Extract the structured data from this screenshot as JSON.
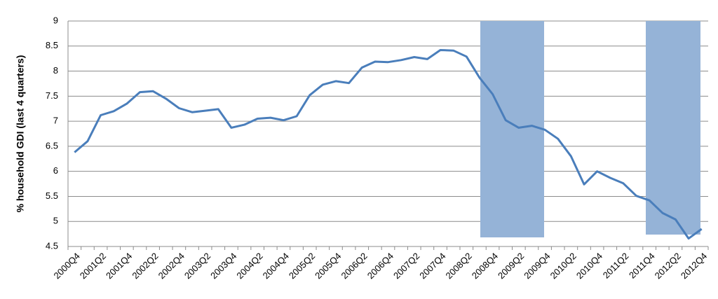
{
  "chart_data": {
    "type": "line",
    "y_label": "% household GDI (last 4 quarters)",
    "categories": [
      "2000Q4",
      null,
      "2001Q2",
      null,
      "2001Q4",
      null,
      "2002Q2",
      null,
      "2002Q4",
      null,
      "2003Q2",
      null,
      "2003Q4",
      null,
      "2004Q2",
      null,
      "2004Q4",
      null,
      "2005Q2",
      null,
      "2005Q4",
      null,
      "2006Q2",
      null,
      "2006Q4",
      null,
      "2007Q2",
      null,
      "2007Q4",
      null,
      "2008Q2",
      null,
      "2008Q4",
      null,
      "2009Q2",
      null,
      "2009Q4",
      null,
      "2010Q2",
      null,
      "2010Q4",
      null,
      "2011Q2",
      null,
      "2011Q4",
      null,
      "2012Q2",
      null,
      "2012Q4"
    ],
    "values": [
      6.38,
      6.6,
      7.12,
      7.2,
      7.35,
      7.58,
      7.6,
      7.45,
      7.26,
      7.18,
      7.21,
      7.24,
      6.87,
      6.93,
      7.05,
      7.07,
      7.02,
      7.1,
      7.52,
      7.73,
      7.8,
      7.76,
      8.07,
      8.19,
      8.18,
      8.22,
      8.28,
      8.24,
      8.42,
      8.41,
      8.29,
      7.87,
      7.54,
      7.02,
      6.87,
      6.91,
      6.83,
      6.65,
      6.3,
      5.74,
      6.0,
      5.87,
      5.76,
      5.51,
      5.42,
      5.17,
      5.04,
      4.66,
      4.85
    ],
    "color": "#4a7ebb",
    "ylim": [
      4.5,
      9
    ],
    "yticks": [
      4.5,
      5,
      5.5,
      6,
      6.5,
      7,
      7.5,
      8,
      8.5,
      9
    ],
    "grid": true
  }
}
